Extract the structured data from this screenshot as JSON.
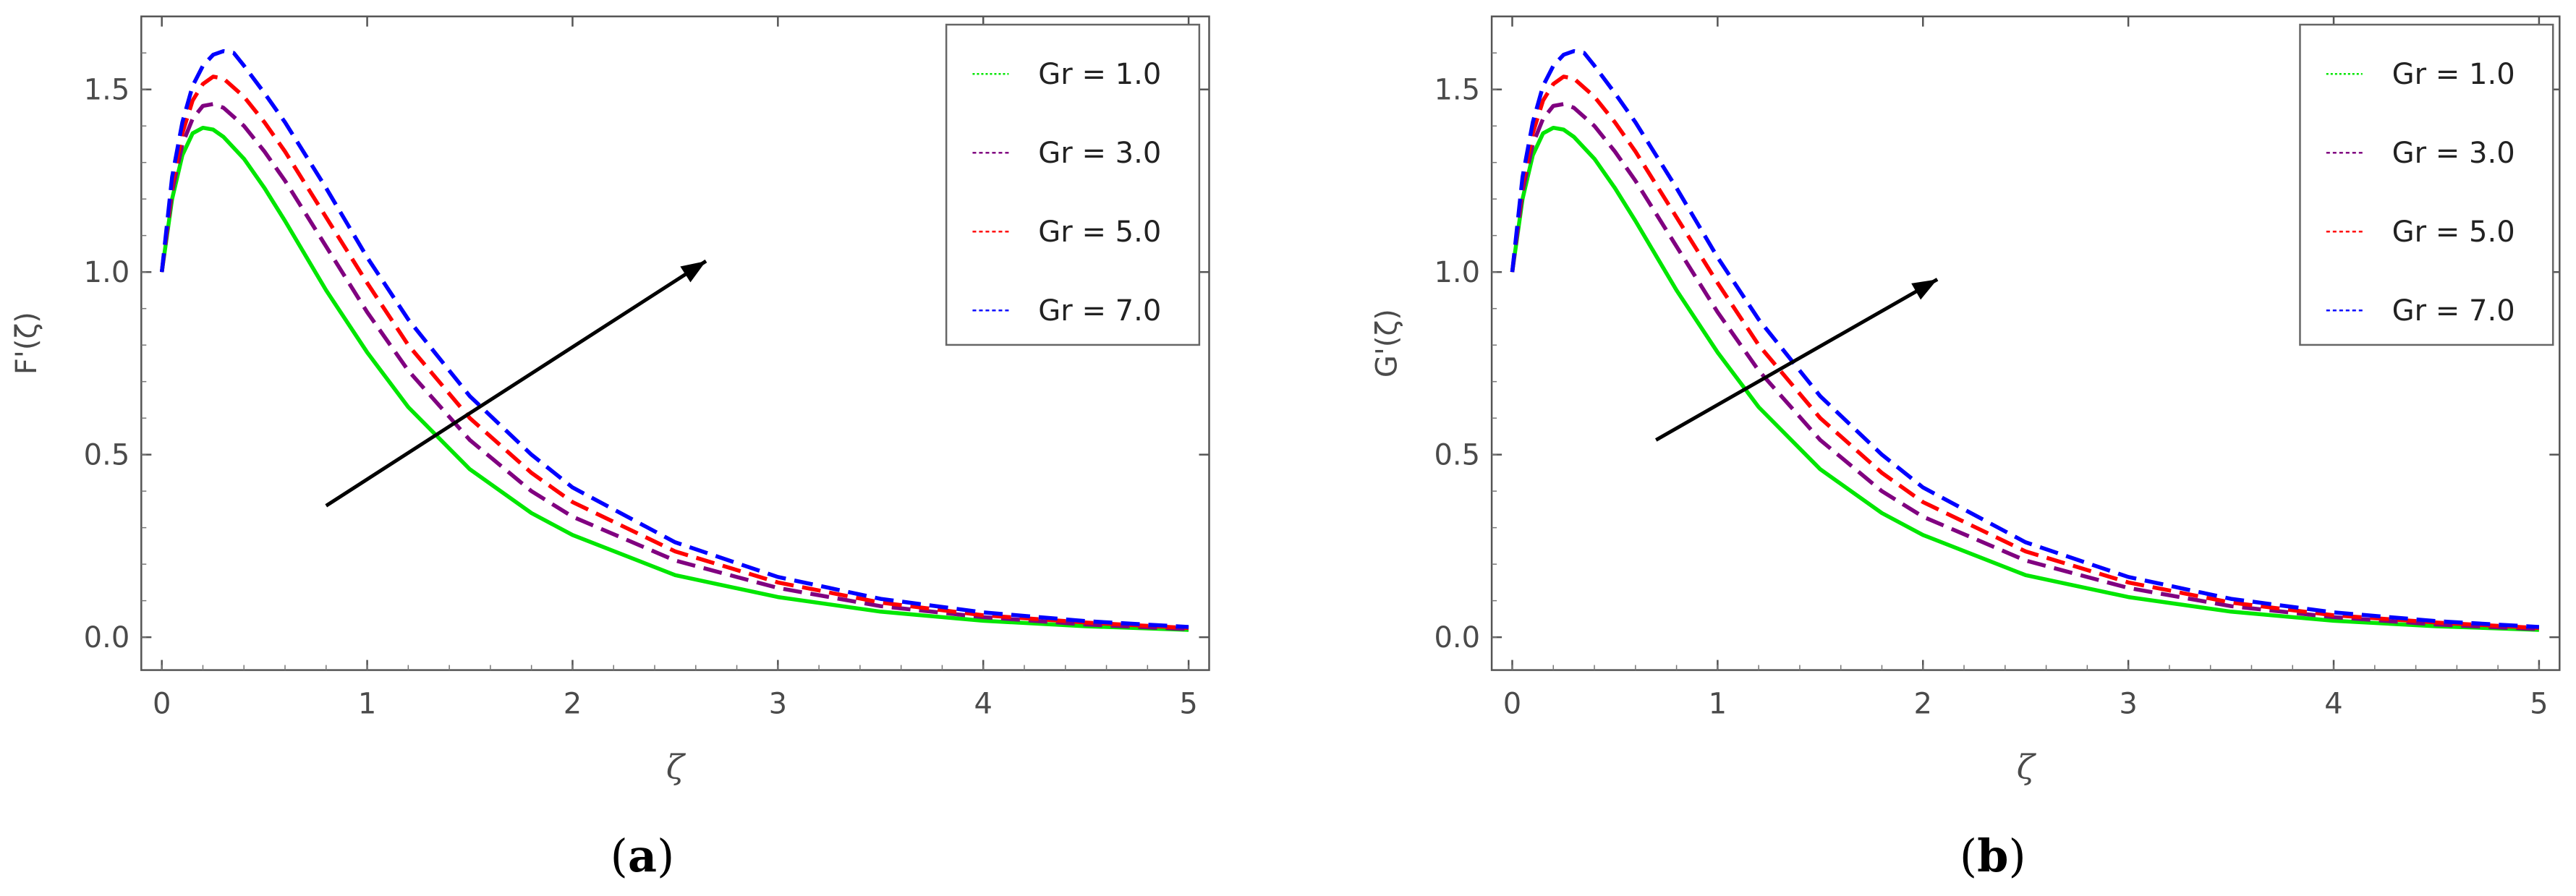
{
  "chart_data": [
    {
      "type": "line",
      "panel_label": "(a)",
      "ylabel": "F'(ζ)",
      "xlabel": "ζ",
      "xlim": [
        -0.1,
        5.1
      ],
      "ylim": [
        -0.09,
        1.7
      ],
      "xticks": [
        "0",
        "1",
        "2",
        "3",
        "4",
        "5"
      ],
      "yticks": [
        "0.0",
        "0.5",
        "1.0",
        "1.5"
      ],
      "legend_position": "top-right",
      "series": [
        {
          "name": "Gr = 1.0",
          "color": "#00e600",
          "style": "solid",
          "x": [
            0,
            0.05,
            0.1,
            0.15,
            0.2,
            0.25,
            0.3,
            0.4,
            0.5,
            0.6,
            0.8,
            1.0,
            1.2,
            1.5,
            1.8,
            2.0,
            2.5,
            3.0,
            3.5,
            4.0,
            4.5,
            5.0
          ],
          "y": [
            1.0,
            1.2,
            1.32,
            1.38,
            1.395,
            1.39,
            1.37,
            1.31,
            1.23,
            1.14,
            0.95,
            0.78,
            0.63,
            0.46,
            0.34,
            0.28,
            0.17,
            0.11,
            0.07,
            0.045,
            0.03,
            0.02
          ]
        },
        {
          "name": "Gr = 3.0",
          "color": "#800080",
          "style": "dashed",
          "x": [
            0,
            0.05,
            0.1,
            0.15,
            0.2,
            0.25,
            0.3,
            0.4,
            0.5,
            0.6,
            0.8,
            1.0,
            1.2,
            1.5,
            1.8,
            2.0,
            2.5,
            3.0,
            3.5,
            4.0,
            4.5,
            5.0
          ],
          "y": [
            1.0,
            1.22,
            1.35,
            1.42,
            1.455,
            1.46,
            1.45,
            1.4,
            1.33,
            1.25,
            1.07,
            0.89,
            0.73,
            0.54,
            0.4,
            0.33,
            0.21,
            0.135,
            0.085,
            0.055,
            0.035,
            0.022
          ]
        },
        {
          "name": "Gr = 5.0",
          "color": "#ff0000",
          "style": "dashed",
          "x": [
            0,
            0.05,
            0.1,
            0.15,
            0.2,
            0.25,
            0.3,
            0.4,
            0.5,
            0.6,
            0.8,
            1.0,
            1.2,
            1.5,
            1.8,
            2.0,
            2.5,
            3.0,
            3.5,
            4.0,
            4.5,
            5.0
          ],
          "y": [
            1.0,
            1.24,
            1.38,
            1.47,
            1.515,
            1.535,
            1.53,
            1.48,
            1.41,
            1.33,
            1.15,
            0.97,
            0.8,
            0.6,
            0.45,
            0.37,
            0.235,
            0.15,
            0.095,
            0.06,
            0.04,
            0.025
          ]
        },
        {
          "name": "Gr = 7.0",
          "color": "#0000ff",
          "style": "dashed",
          "x": [
            0,
            0.05,
            0.1,
            0.15,
            0.2,
            0.25,
            0.3,
            0.35,
            0.4,
            0.5,
            0.6,
            0.8,
            1.0,
            1.2,
            1.5,
            1.8,
            2.0,
            2.5,
            3.0,
            3.5,
            4.0,
            4.5,
            5.0
          ],
          "y": [
            1.0,
            1.26,
            1.41,
            1.51,
            1.565,
            1.595,
            1.605,
            1.6,
            1.565,
            1.49,
            1.41,
            1.23,
            1.04,
            0.87,
            0.66,
            0.5,
            0.41,
            0.26,
            0.165,
            0.105,
            0.068,
            0.044,
            0.028
          ]
        }
      ],
      "annotations": [
        {
          "type": "arrow",
          "from": [
            0.8,
            0.36
          ],
          "to": [
            2.65,
            1.03
          ]
        }
      ]
    },
    {
      "type": "line",
      "panel_label": "(b)",
      "ylabel": "G'(ζ)",
      "xlabel": "ζ",
      "xlim": [
        -0.1,
        5.1
      ],
      "ylim": [
        -0.09,
        1.7
      ],
      "xticks": [
        "0",
        "1",
        "2",
        "3",
        "4",
        "5"
      ],
      "yticks": [
        "0.0",
        "0.5",
        "1.0",
        "1.5"
      ],
      "legend_position": "top-right",
      "series": [
        {
          "name": "Gr = 1.0",
          "color": "#00e600",
          "style": "solid",
          "x": [
            0,
            0.05,
            0.1,
            0.15,
            0.2,
            0.25,
            0.3,
            0.4,
            0.5,
            0.6,
            0.8,
            1.0,
            1.2,
            1.5,
            1.8,
            2.0,
            2.5,
            3.0,
            3.5,
            4.0,
            4.5,
            5.0
          ],
          "y": [
            1.0,
            1.2,
            1.32,
            1.38,
            1.395,
            1.39,
            1.37,
            1.31,
            1.23,
            1.14,
            0.95,
            0.78,
            0.63,
            0.46,
            0.34,
            0.28,
            0.17,
            0.11,
            0.07,
            0.045,
            0.03,
            0.02
          ]
        },
        {
          "name": "Gr = 3.0",
          "color": "#800080",
          "style": "dashed",
          "x": [
            0,
            0.05,
            0.1,
            0.15,
            0.2,
            0.25,
            0.3,
            0.4,
            0.5,
            0.6,
            0.8,
            1.0,
            1.2,
            1.5,
            1.8,
            2.0,
            2.5,
            3.0,
            3.5,
            4.0,
            4.5,
            5.0
          ],
          "y": [
            1.0,
            1.22,
            1.35,
            1.42,
            1.455,
            1.46,
            1.45,
            1.4,
            1.33,
            1.25,
            1.07,
            0.89,
            0.73,
            0.54,
            0.4,
            0.33,
            0.21,
            0.135,
            0.085,
            0.055,
            0.035,
            0.022
          ]
        },
        {
          "name": "Gr = 5.0",
          "color": "#ff0000",
          "style": "dashed",
          "x": [
            0,
            0.05,
            0.1,
            0.15,
            0.2,
            0.25,
            0.3,
            0.4,
            0.5,
            0.6,
            0.8,
            1.0,
            1.2,
            1.5,
            1.8,
            2.0,
            2.5,
            3.0,
            3.5,
            4.0,
            4.5,
            5.0
          ],
          "y": [
            1.0,
            1.24,
            1.38,
            1.47,
            1.515,
            1.535,
            1.53,
            1.48,
            1.41,
            1.33,
            1.15,
            0.97,
            0.8,
            0.6,
            0.45,
            0.37,
            0.235,
            0.15,
            0.095,
            0.06,
            0.04,
            0.025
          ]
        },
        {
          "name": "Gr = 7.0",
          "color": "#0000ff",
          "style": "dashed",
          "x": [
            0,
            0.05,
            0.1,
            0.15,
            0.2,
            0.25,
            0.3,
            0.35,
            0.4,
            0.5,
            0.6,
            0.8,
            1.0,
            1.2,
            1.5,
            1.8,
            2.0,
            2.5,
            3.0,
            3.5,
            4.0,
            4.5,
            5.0
          ],
          "y": [
            1.0,
            1.26,
            1.41,
            1.51,
            1.565,
            1.595,
            1.605,
            1.6,
            1.565,
            1.49,
            1.41,
            1.23,
            1.04,
            0.87,
            0.66,
            0.5,
            0.41,
            0.26,
            0.165,
            0.105,
            0.068,
            0.044,
            0.028
          ]
        }
      ],
      "annotations": [
        {
          "type": "arrow",
          "from": [
            0.7,
            0.54
          ],
          "to": [
            2.07,
            0.98
          ]
        }
      ]
    }
  ]
}
